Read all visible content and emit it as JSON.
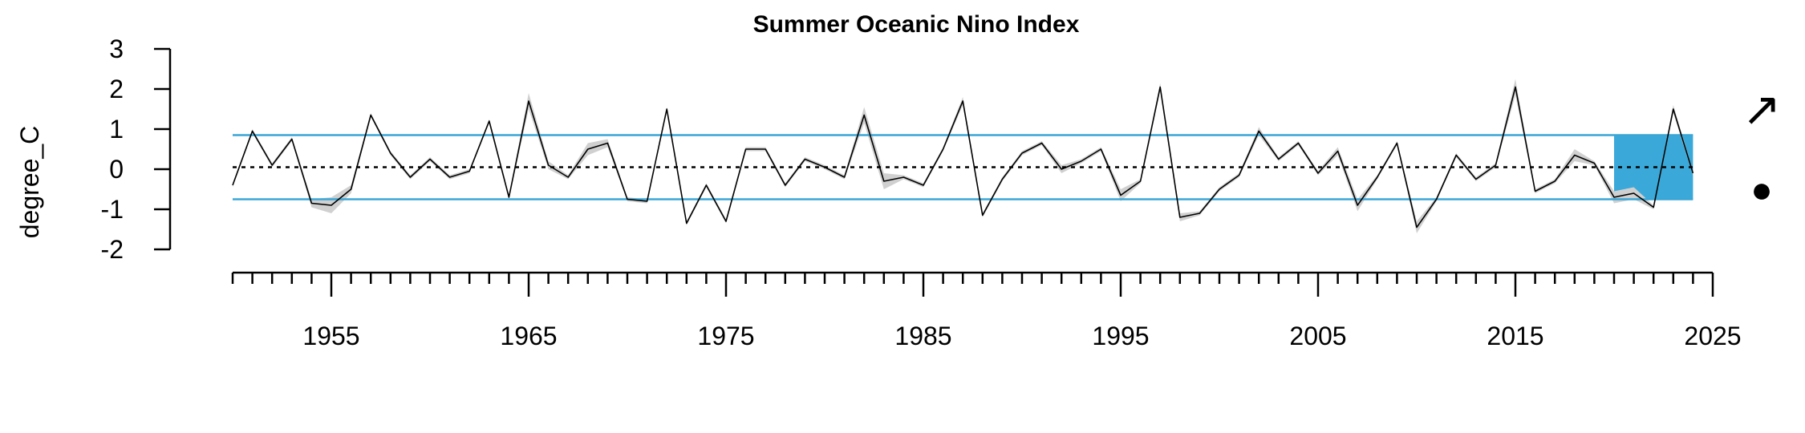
{
  "chart_data": {
    "type": "line",
    "title": "Summer Oceanic Nino Index",
    "xlabel": "",
    "ylabel": "degree_C",
    "xlim": [
      1950,
      2025
    ],
    "ylim": [
      -2,
      3
    ],
    "y_ticks": [
      3,
      2,
      1,
      0,
      -1,
      -2
    ],
    "x_ticks": [
      1955,
      1965,
      1975,
      1985,
      1995,
      2005,
      2015,
      2025
    ],
    "grid": false,
    "legend": "none",
    "mean": 0.05,
    "upper_bound": 0.85,
    "lower_bound": -0.75,
    "highlight_period": [
      2020,
      2024
    ],
    "trend_symbol": "↗",
    "status_symbol": "●",
    "colors": {
      "line": "#000000",
      "uncertainty": "#d0d0d0",
      "bounds": "#3aa6d6",
      "highlight": "#3aa9d9"
    },
    "series": [
      {
        "x": [
          1950,
          1951,
          1952,
          1953,
          1954,
          1955,
          1956,
          1957,
          1958,
          1959,
          1960,
          1961,
          1962,
          1963,
          1964,
          1965,
          1966,
          1967,
          1968,
          1969,
          1970,
          1971,
          1972,
          1973,
          1974,
          1975,
          1976,
          1977,
          1978,
          1979,
          1980,
          1981,
          1982,
          1983,
          1984,
          1985,
          1986,
          1987,
          1988,
          1989,
          1990,
          1991,
          1992,
          1993,
          1994,
          1995,
          1996,
          1997,
          1998,
          1999,
          2000,
          2001,
          2002,
          2003,
          2004,
          2005,
          2006,
          2007,
          2008,
          2009,
          2010,
          2011,
          2012,
          2013,
          2014,
          2015,
          2016,
          2017,
          2018,
          2019,
          2020,
          2021,
          2022,
          2023,
          2024
        ],
        "values": [
          -0.4,
          0.95,
          0.1,
          0.75,
          -0.85,
          -0.9,
          -0.5,
          1.35,
          0.4,
          -0.2,
          0.25,
          -0.2,
          -0.05,
          1.2,
          -0.7,
          1.7,
          0.1,
          -0.2,
          0.5,
          0.65,
          -0.75,
          -0.8,
          1.5,
          -1.35,
          -0.4,
          -1.3,
          0.5,
          0.5,
          -0.4,
          0.25,
          0.05,
          -0.2,
          1.35,
          -0.3,
          -0.2,
          -0.4,
          0.5,
          1.7,
          -1.15,
          -0.25,
          0.4,
          0.65,
          0.0,
          0.2,
          0.5,
          -0.65,
          -0.3,
          2.05,
          -1.2,
          -1.1,
          -0.5,
          -0.15,
          0.95,
          0.25,
          0.65,
          -0.1,
          0.45,
          -0.9,
          -0.2,
          0.65,
          -1.45,
          -0.75,
          0.35,
          -0.25,
          0.1,
          2.05,
          -0.55,
          -0.3,
          0.35,
          0.15,
          -0.7,
          -0.6,
          -0.95,
          1.5,
          -0.1
        ],
        "uncertainty": [
          0.05,
          0.05,
          0.05,
          0.05,
          0.1,
          0.2,
          0.1,
          0.05,
          0.05,
          0.05,
          0.05,
          0.05,
          0.05,
          0.05,
          0.05,
          0.2,
          0.1,
          0.05,
          0.15,
          0.1,
          0.05,
          0.05,
          0.05,
          0.05,
          0.05,
          0.05,
          0.05,
          0.05,
          0.05,
          0.05,
          0.05,
          0.05,
          0.2,
          0.2,
          0.05,
          0.05,
          0.05,
          0.1,
          0.05,
          0.05,
          0.05,
          0.05,
          0.1,
          0.05,
          0.05,
          0.15,
          0.05,
          0.1,
          0.1,
          0.05,
          0.05,
          0.05,
          0.1,
          0.05,
          0.05,
          0.05,
          0.1,
          0.15,
          0.05,
          0.05,
          0.15,
          0.05,
          0.05,
          0.05,
          0.05,
          0.2,
          0.05,
          0.05,
          0.15,
          0.05,
          0.15,
          0.15,
          0.05,
          0.1,
          0.05
        ]
      }
    ]
  }
}
